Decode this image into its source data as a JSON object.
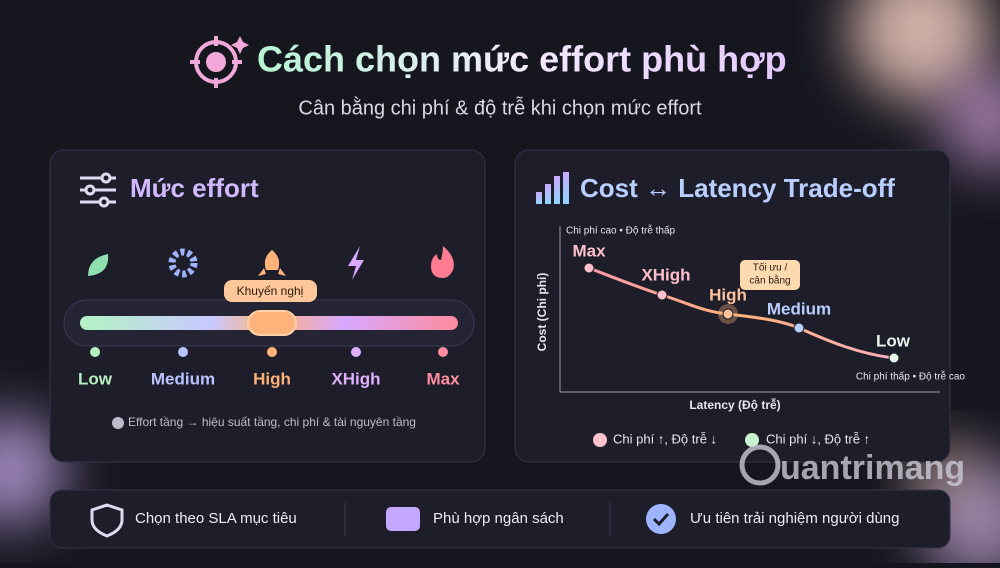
{
  "header": {
    "title": "Cách chọn mức effort phù hợp",
    "subtitle": "Cân bằng chi phí & độ trễ khi chọn mức effort"
  },
  "effort_panel": {
    "title": "Mức effort",
    "badge": "Khuyến nghị",
    "levels": [
      "Low",
      "Medium",
      "High",
      "XHigh",
      "Max"
    ],
    "note": "Effort tầng → hiệu suất tầng, chi phí & tài nguyên tầng"
  },
  "tradeoff_panel": {
    "title": "Cost ↔ Latency Trade-off",
    "top_note": "Chi phí cao • Độ trễ thấp",
    "bottom_note": "Chi phí thấp • Độ trễ cao",
    "y_axis": "Cost (Chi phí)",
    "x_axis": "Latency (Độ trễ)",
    "points": [
      "Max",
      "XHigh",
      "High",
      "Medium",
      "Low"
    ],
    "callout": [
      "Tối ưu /",
      "cân bằng"
    ],
    "legend": [
      "Chi phí ↑, Độ trễ ↓",
      "Chi phí ↓, Độ trễ ↑"
    ]
  },
  "footer": {
    "items": [
      "Chọn theo SLA mục tiêu",
      "Phù hợp ngân sách",
      "Ưu tiên trải nghiệm người dùng"
    ]
  },
  "watermark": "uantrimang"
}
